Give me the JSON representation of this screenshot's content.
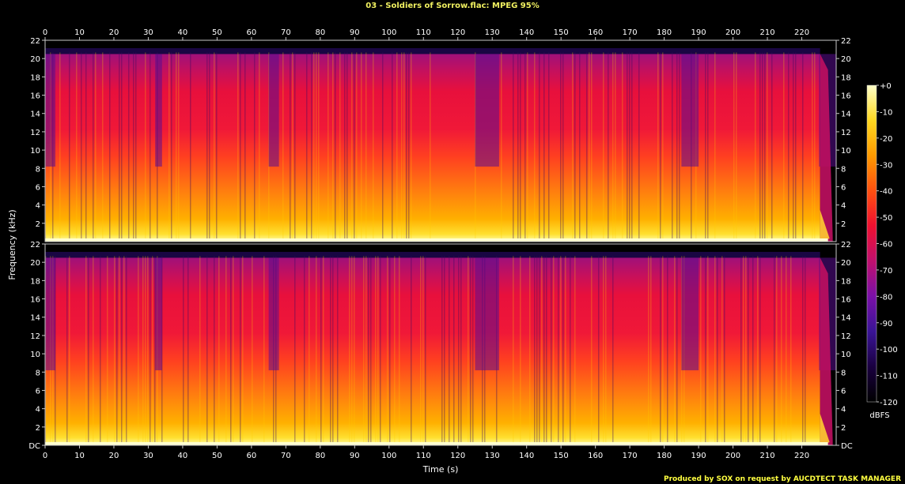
{
  "title": "03 - Soldiers of Sorrow.flac: MPEG 95%",
  "footer": "Produced by SOX on request by AUCDTECT TASK MANAGER",
  "colors": {
    "background": "#000000",
    "title_text": "#f0f060",
    "footer_text": "#ffff40",
    "axis_text": "#ffffff",
    "frame": "#c8c8c8"
  },
  "chart_data": {
    "type": "heatmap",
    "title": "03 - Soldiers of Sorrow.flac: MPEG 95%",
    "xlabel": "Time (s)",
    "ylabel": "Frequency (kHz)",
    "xlim": [
      0,
      230
    ],
    "x_ticks": [
      0,
      10,
      20,
      30,
      40,
      50,
      60,
      70,
      80,
      90,
      100,
      110,
      120,
      130,
      140,
      150,
      160,
      170,
      180,
      190,
      200,
      210,
      220
    ],
    "ylim": [
      0,
      22
    ],
    "y_ticks_top": [
      2,
      4,
      6,
      8,
      10,
      12,
      14,
      16,
      18,
      20,
      22
    ],
    "y_ticks_bottom": [
      "DC",
      "2",
      "4",
      "6",
      "8",
      "10",
      "12",
      "14",
      "16",
      "18",
      "20",
      "22"
    ],
    "channels": [
      "Channel 1",
      "Channel 2"
    ],
    "spectral_cutoff_khz": 20.5,
    "audio_end_s": 229,
    "colorbar": {
      "label": "dBFS",
      "range": [
        -120,
        0
      ],
      "ticks": [
        "+0",
        "-10",
        "-20",
        "-30",
        "-40",
        "-50",
        "-60",
        "-70",
        "-80",
        "-90",
        "-100",
        "-110",
        "-120"
      ],
      "colormap": [
        "#000000",
        "#1a0040",
        "#3a1496",
        "#7a10a8",
        "#c0106e",
        "#f01030",
        "#ff5010",
        "#ff9a00",
        "#ffd820",
        "#ffffc8"
      ]
    },
    "quiet_segments_s": [
      [
        0,
        3
      ],
      [
        32,
        34
      ],
      [
        65,
        68
      ],
      [
        125,
        132
      ],
      [
        185,
        190
      ],
      [
        225,
        230
      ]
    ]
  }
}
